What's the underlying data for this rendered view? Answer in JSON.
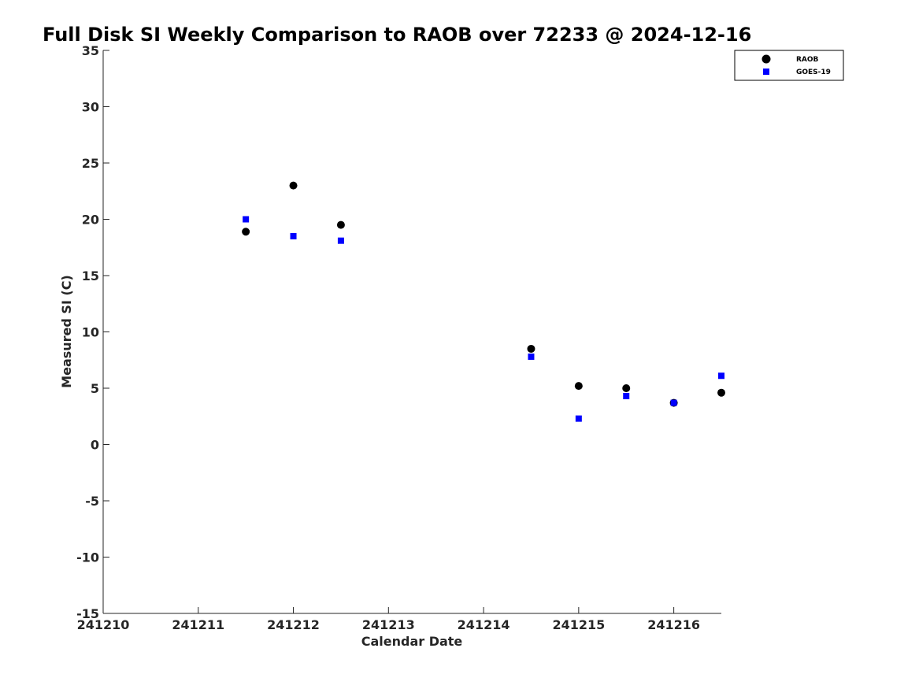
{
  "chart_data": {
    "type": "scatter",
    "title": "Full Disk SI Weekly Comparison to RAOB over 72233 @ 2024-12-16",
    "xlabel": "Calendar Date",
    "ylabel": "Measured SI (C)",
    "xlim": [
      241210,
      241216.5
    ],
    "ylim": [
      -15,
      35
    ],
    "x_ticks": [
      241210,
      241211,
      241212,
      241213,
      241214,
      241215,
      241216
    ],
    "x_tick_labels": [
      "241210",
      "241211",
      "241212",
      "241213",
      "241214",
      "241215",
      "241216"
    ],
    "y_ticks": [
      -15,
      -10,
      -5,
      0,
      5,
      10,
      15,
      20,
      25,
      30,
      35
    ],
    "y_tick_labels": [
      "-15",
      "-10",
      "-5",
      "0",
      "5",
      "10",
      "15",
      "20",
      "25",
      "30",
      "35"
    ],
    "grid": false,
    "legend_position": "top-right",
    "series": [
      {
        "name": "RAOB",
        "marker": "circle",
        "color": "#000000",
        "x": [
          241211.5,
          241212.0,
          241212.5,
          241214.5,
          241215.0,
          241215.5,
          241216.0,
          241216.5
        ],
        "y": [
          18.9,
          23.0,
          19.5,
          8.5,
          5.2,
          5.0,
          3.7,
          4.6
        ]
      },
      {
        "name": "GOES-19",
        "marker": "square",
        "color": "#0000ff",
        "x": [
          241211.5,
          241212.0,
          241212.5,
          241214.5,
          241215.0,
          241215.5,
          241216.0,
          241216.5
        ],
        "y": [
          20.0,
          18.5,
          18.1,
          7.8,
          2.3,
          4.3,
          3.7,
          6.1
        ]
      }
    ]
  }
}
